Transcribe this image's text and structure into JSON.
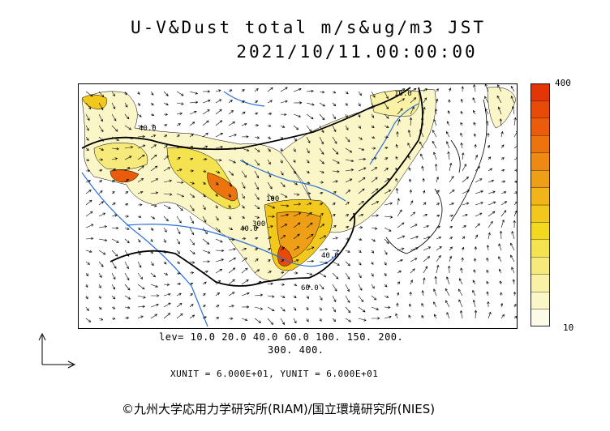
{
  "title": {
    "line1": "U-V&Dust total m/s&ug/m3 JST",
    "line2": "2021/10/11.00:00:00"
  },
  "colorbar": {
    "max_label": "400",
    "min_label": "10",
    "colors": [
      "#fbfbe8",
      "#fbf6c8",
      "#f9f1a6",
      "#f7ea7c",
      "#f4e24f",
      "#f2d920",
      "#f2c81c",
      "#f1b419",
      "#ef9f15",
      "#ee8a12",
      "#ec730e",
      "#ea5c0b",
      "#e84a08",
      "#e33505"
    ]
  },
  "levels": {
    "line1": "lev= 10.0 20.0 40.0 60.0 100. 150. 200.",
    "line2": "300. 400."
  },
  "units_text": "XUNIT = 6.000E+01, YUNIT = 6.000E+01",
  "credit": "©九州大学応用力学研究所(RIAM)/国立環境研究所(NIES)",
  "map_labels": [
    "40.0",
    "100",
    "40.0",
    "300",
    "60.0",
    "10.0",
    "40.0"
  ]
}
